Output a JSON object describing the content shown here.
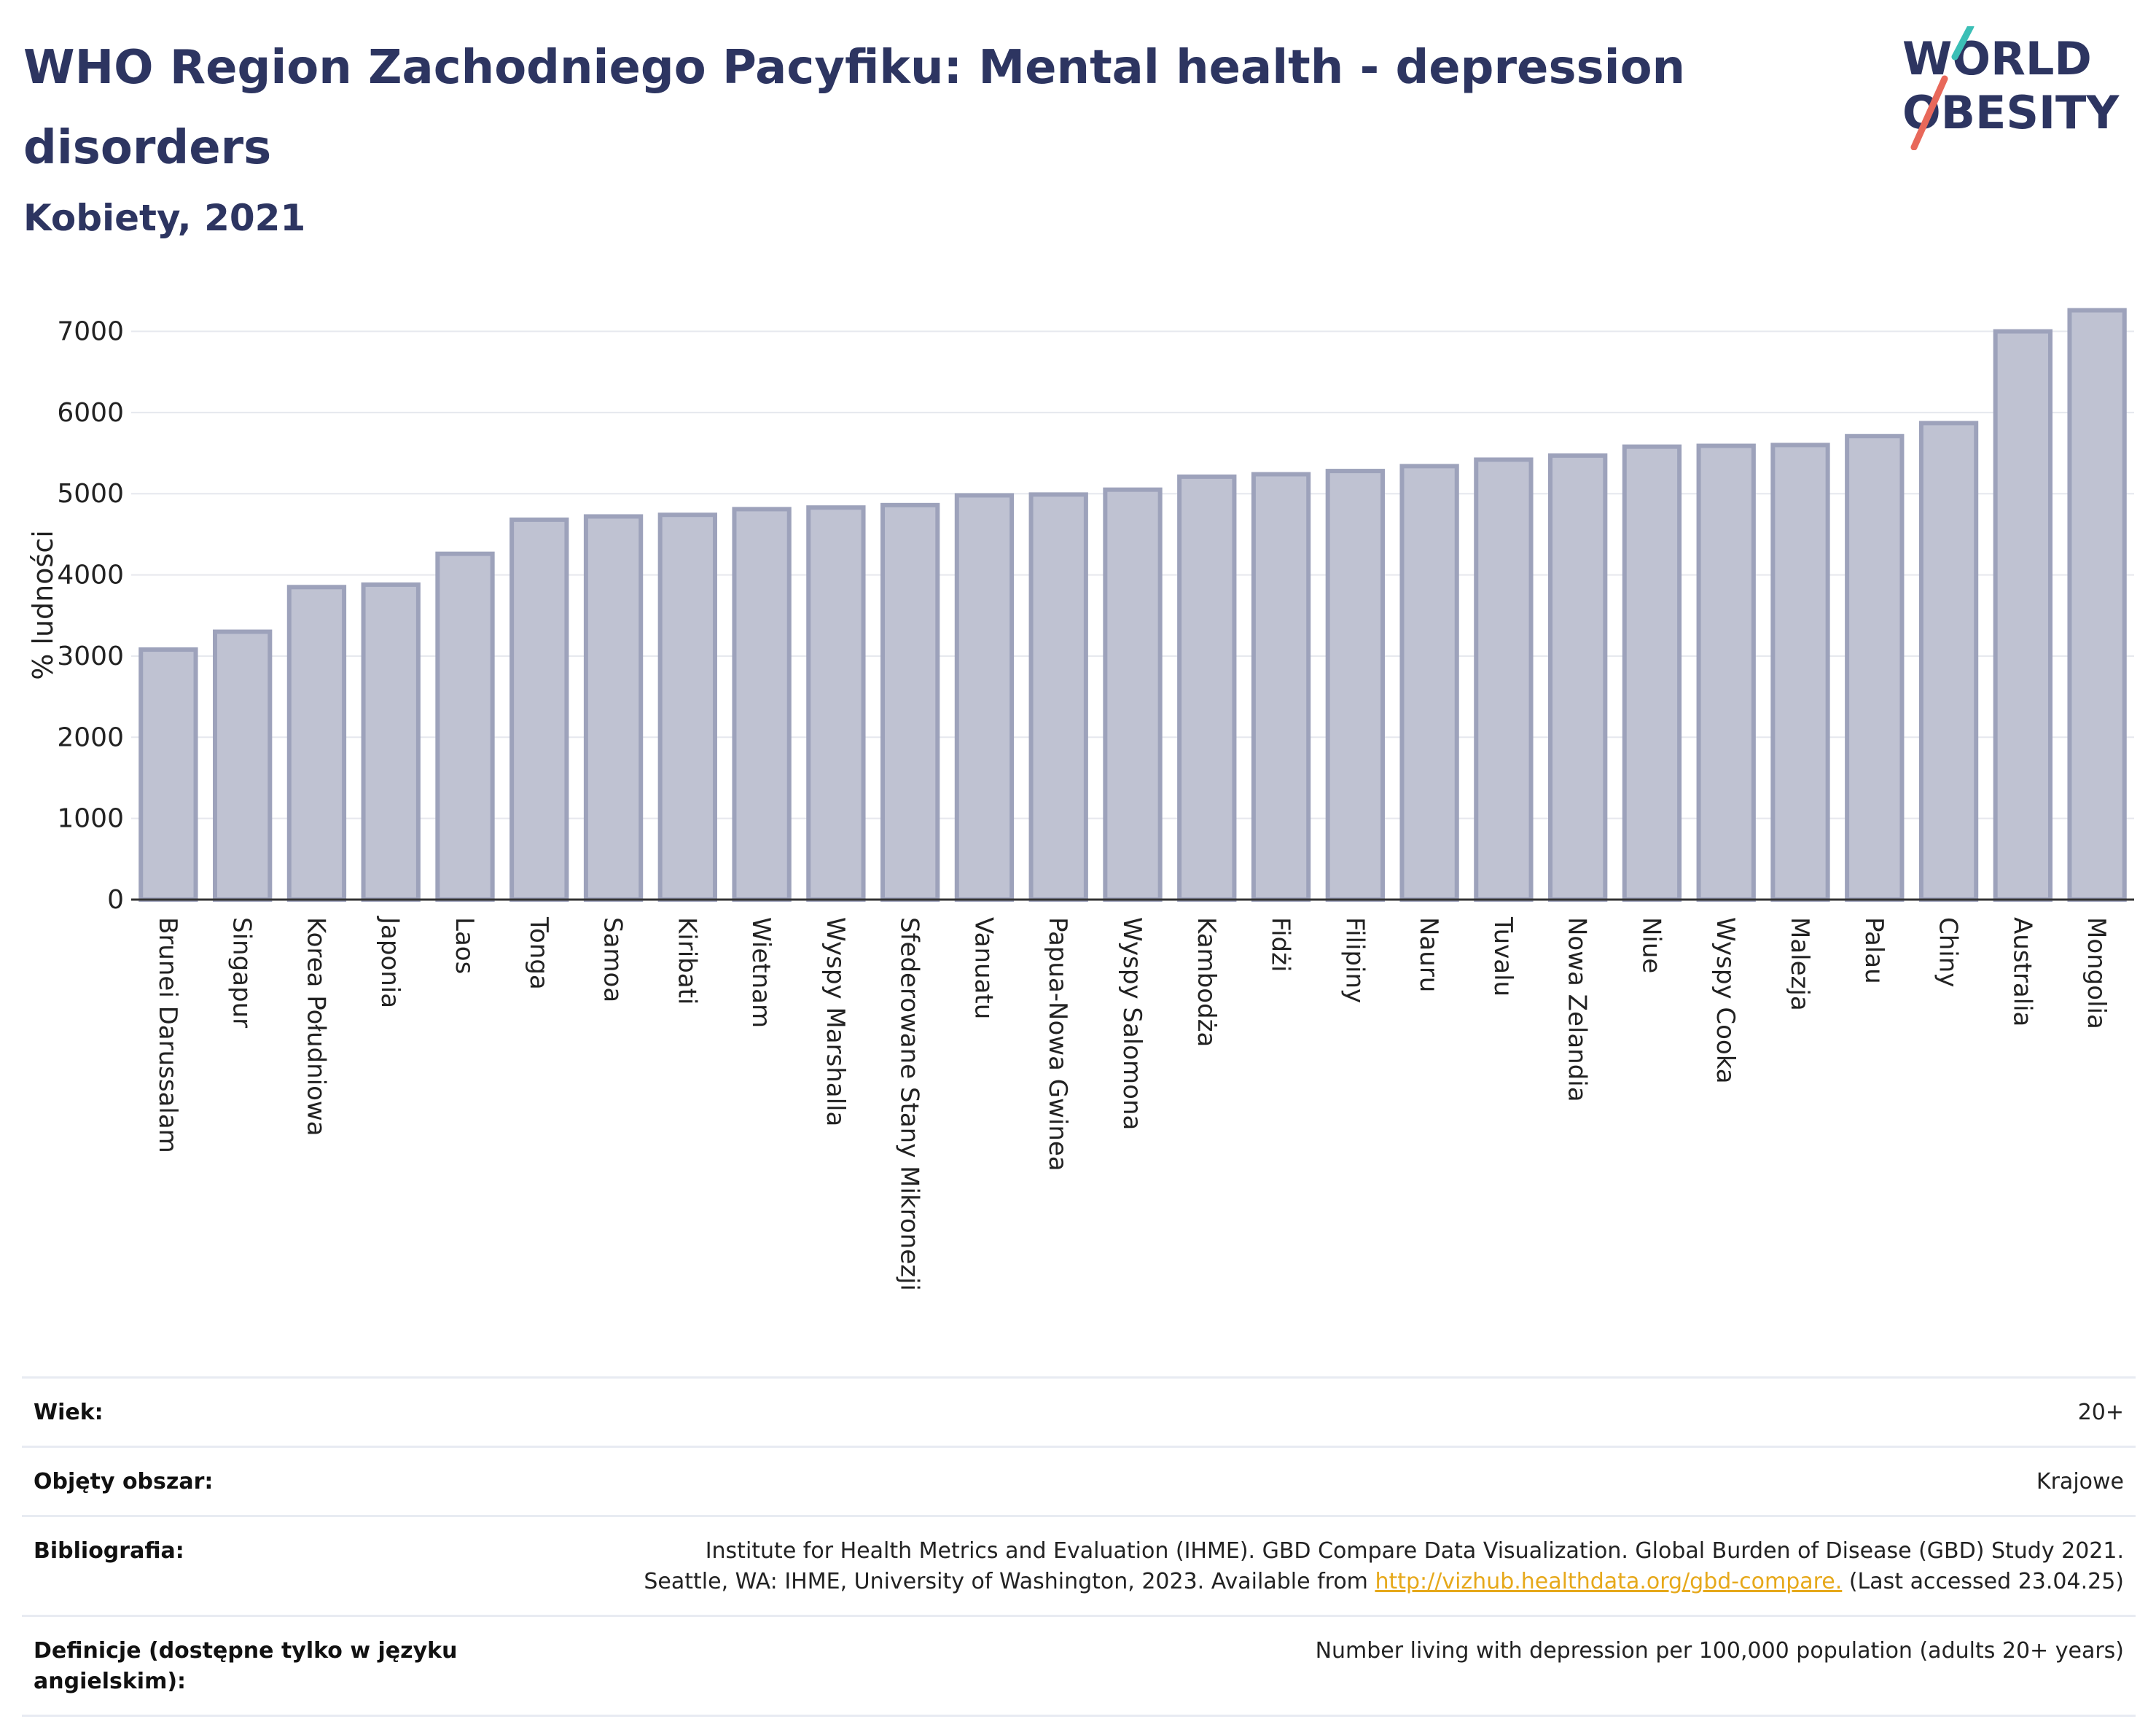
{
  "header": {
    "title": "WHO Region Zachodniego Pacyfiku: Mental health - depression disorders",
    "subtitle": "Kobiety, 2021"
  },
  "logo": {
    "line1": "WORLD",
    "line2": "OBESITY",
    "accent_teal": "#3bbfb6",
    "accent_coral": "#e8685a"
  },
  "colors": {
    "bar_fill": "#bfc2d2",
    "bar_stroke": "#9da2bb",
    "text_dark": "#2d3561",
    "grid": "#e6e8ee"
  },
  "chart_data": {
    "type": "bar",
    "ylabel": "% ludności",
    "ylim": [
      0,
      7400
    ],
    "yticks": [
      0,
      1000,
      2000,
      3000,
      4000,
      5000,
      6000,
      7000
    ],
    "grid": true,
    "categories": [
      "Brunei Darussalam",
      "Singapur",
      "Korea Południowa",
      "Japonia",
      "Laos",
      "Tonga",
      "Samoa",
      "Kiribati",
      "Wietnam",
      "Wyspy Marshalla",
      "Sfederowane Stany Mikronezji",
      "Vanuatu",
      "Papua-Nowa Gwinea",
      "Wyspy Salomona",
      "Kambodża",
      "Fidżi",
      "Filipiny",
      "Nauru",
      "Tuvalu",
      "Nowa Zelandia",
      "Niue",
      "Wyspy Cooka",
      "Malezja",
      "Palau",
      "Chiny",
      "Australia",
      "Mongolia"
    ],
    "values": [
      3080,
      3300,
      3850,
      3880,
      4260,
      4680,
      4720,
      4740,
      4810,
      4830,
      4860,
      4980,
      4990,
      5050,
      5210,
      5240,
      5280,
      5340,
      5420,
      5470,
      5580,
      5590,
      5600,
      5710,
      5870,
      7000,
      7260
    ]
  },
  "meta": {
    "rows": [
      {
        "label": "Wiek:",
        "value": "20+"
      },
      {
        "label": "Objęty obszar:",
        "value": "Krajowe"
      },
      {
        "label": "Bibliografia:",
        "value_line1": "Institute for Health Metrics and Evaluation (IHME). GBD Compare Data Visualization. Global Burden of Disease (GBD) Study 2021.",
        "value_line2_pre": "Seattle, WA: IHME, University of Washington, 2023. Available from ",
        "link": "http://vizhub.healthdata.org/gbd-compare.",
        "value_line2_post": " (Last accessed 23.04.25)"
      },
      {
        "label": "Definicje (dostępne tylko w języku angielskim):",
        "value": "Number living with depression per 100,000 population (adults 20+ years)"
      }
    ]
  }
}
